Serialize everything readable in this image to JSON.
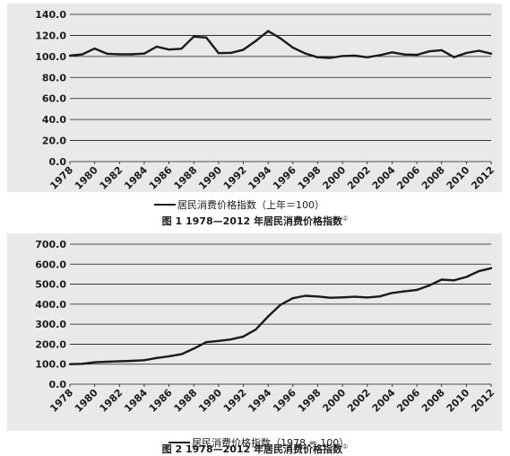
{
  "chart_data": [
    {
      "type": "line",
      "x": [
        1978,
        1979,
        1980,
        1981,
        1982,
        1983,
        1984,
        1985,
        1986,
        1987,
        1988,
        1989,
        1990,
        1991,
        1992,
        1993,
        1994,
        1995,
        1996,
        1997,
        1998,
        1999,
        2000,
        2001,
        2002,
        2003,
        2004,
        2005,
        2006,
        2007,
        2008,
        2009,
        2010,
        2011,
        2012
      ],
      "series": [
        {
          "name": "居民消费价格指数（上年＝100）",
          "values": [
            100.7,
            101.9,
            107.5,
            102.5,
            102.0,
            102.0,
            102.7,
            109.3,
            106.5,
            107.3,
            118.8,
            118.0,
            103.1,
            103.4,
            106.4,
            114.7,
            124.1,
            117.1,
            108.3,
            102.8,
            99.2,
            98.6,
            100.4,
            100.7,
            99.2,
            101.2,
            103.9,
            101.8,
            101.5,
            104.8,
            105.9,
            99.3,
            103.3,
            105.4,
            102.6
          ]
        }
      ],
      "xticks": [
        "1978",
        "1980",
        "1982",
        "1984",
        "1986",
        "1988",
        "1990",
        "1992",
        "1994",
        "1996",
        "1998",
        "2000",
        "2002",
        "2004",
        "2006",
        "2008",
        "2010",
        "2012"
      ],
      "yticks": [
        "0.0",
        "20.0",
        "40.0",
        "60.0",
        "80.0",
        "100.0",
        "120.0",
        "140.0"
      ],
      "ylim": [
        0,
        140
      ],
      "grid": true,
      "legend_position": "bottom",
      "caption_text": "图 1  1978—2012 年居民消费价格指数",
      "caption_note": "①"
    },
    {
      "type": "line",
      "x": [
        1978,
        1979,
        1980,
        1981,
        1982,
        1983,
        1984,
        1985,
        1986,
        1987,
        1988,
        1989,
        1990,
        1991,
        1992,
        1993,
        1994,
        1995,
        1996,
        1997,
        1998,
        1999,
        2000,
        2001,
        2002,
        2003,
        2004,
        2005,
        2006,
        2007,
        2008,
        2009,
        2010,
        2011,
        2012
      ],
      "series": [
        {
          "name": "居民消费价格指数（1978 = 100）",
          "values": [
            100.0,
            101.9,
            109.5,
            112.2,
            114.4,
            116.7,
            119.9,
            131.1,
            139.6,
            149.8,
            177.9,
            209.9,
            216.4,
            223.8,
            238.1,
            273.1,
            339.0,
            396.9,
            429.9,
            441.9,
            438.4,
            432.2,
            434.0,
            437.0,
            433.5,
            438.7,
            455.8,
            464.0,
            471.0,
            493.6,
            522.7,
            519.0,
            536.1,
            565.0,
            579.7
          ]
        }
      ],
      "xticks": [
        "1978",
        "1980",
        "1982",
        "1984",
        "1986",
        "1988",
        "1990",
        "1992",
        "1994",
        "1996",
        "1998",
        "2000",
        "2002",
        "2004",
        "2006",
        "2008",
        "2010",
        "2012"
      ],
      "yticks": [
        "0.0",
        "100.0",
        "200.0",
        "300.0",
        "400.0",
        "500.0",
        "600.0",
        "700.0"
      ],
      "ylim": [
        0,
        700
      ],
      "grid": true,
      "legend_position": "bottom",
      "caption_text": "图 2  1978—2012 年居民消费价格指数",
      "caption_note": "①"
    }
  ],
  "colors": {
    "line": "#1a1a1a",
    "grid": "#1a1a1a",
    "plot_bg": "#e9e9e9"
  }
}
